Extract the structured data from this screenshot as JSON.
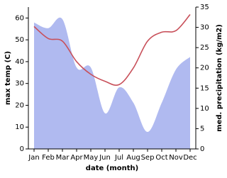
{
  "chart_data": {
    "type": "line",
    "x_label": "date (month)",
    "y_label": "max temp (C)",
    "y2_label": "med. precipitation (kg/m2)",
    "categories": [
      "Jan",
      "Feb",
      "Mar",
      "Apr",
      "May",
      "Jun",
      "Jul",
      "Aug",
      "Sep",
      "Oct",
      "Nov",
      "Dec"
    ],
    "series": [
      {
        "name": "med. precipitation",
        "type": "area",
        "axis": "y2",
        "color": "#b0baf0",
        "values": [
          31.2,
          29.8,
          32,
          20.1,
          20.1,
          8.8,
          15.2,
          11.4,
          4.2,
          11.4,
          19.6,
          22.7
        ]
      },
      {
        "name": "max temp",
        "type": "line",
        "axis": "y",
        "color": "#c8505a",
        "values": [
          56.1,
          50.6,
          49.4,
          40,
          34.2,
          31,
          29.5,
          37.1,
          49.4,
          53.5,
          54.2,
          61.6
        ]
      }
    ],
    "ylim": [
      0,
      65
    ],
    "yticks": [
      0,
      10,
      20,
      30,
      40,
      50,
      60
    ],
    "y2lim": [
      0,
      35
    ],
    "y2ticks": [
      0,
      5,
      10,
      15,
      20,
      25,
      30,
      35
    ]
  }
}
